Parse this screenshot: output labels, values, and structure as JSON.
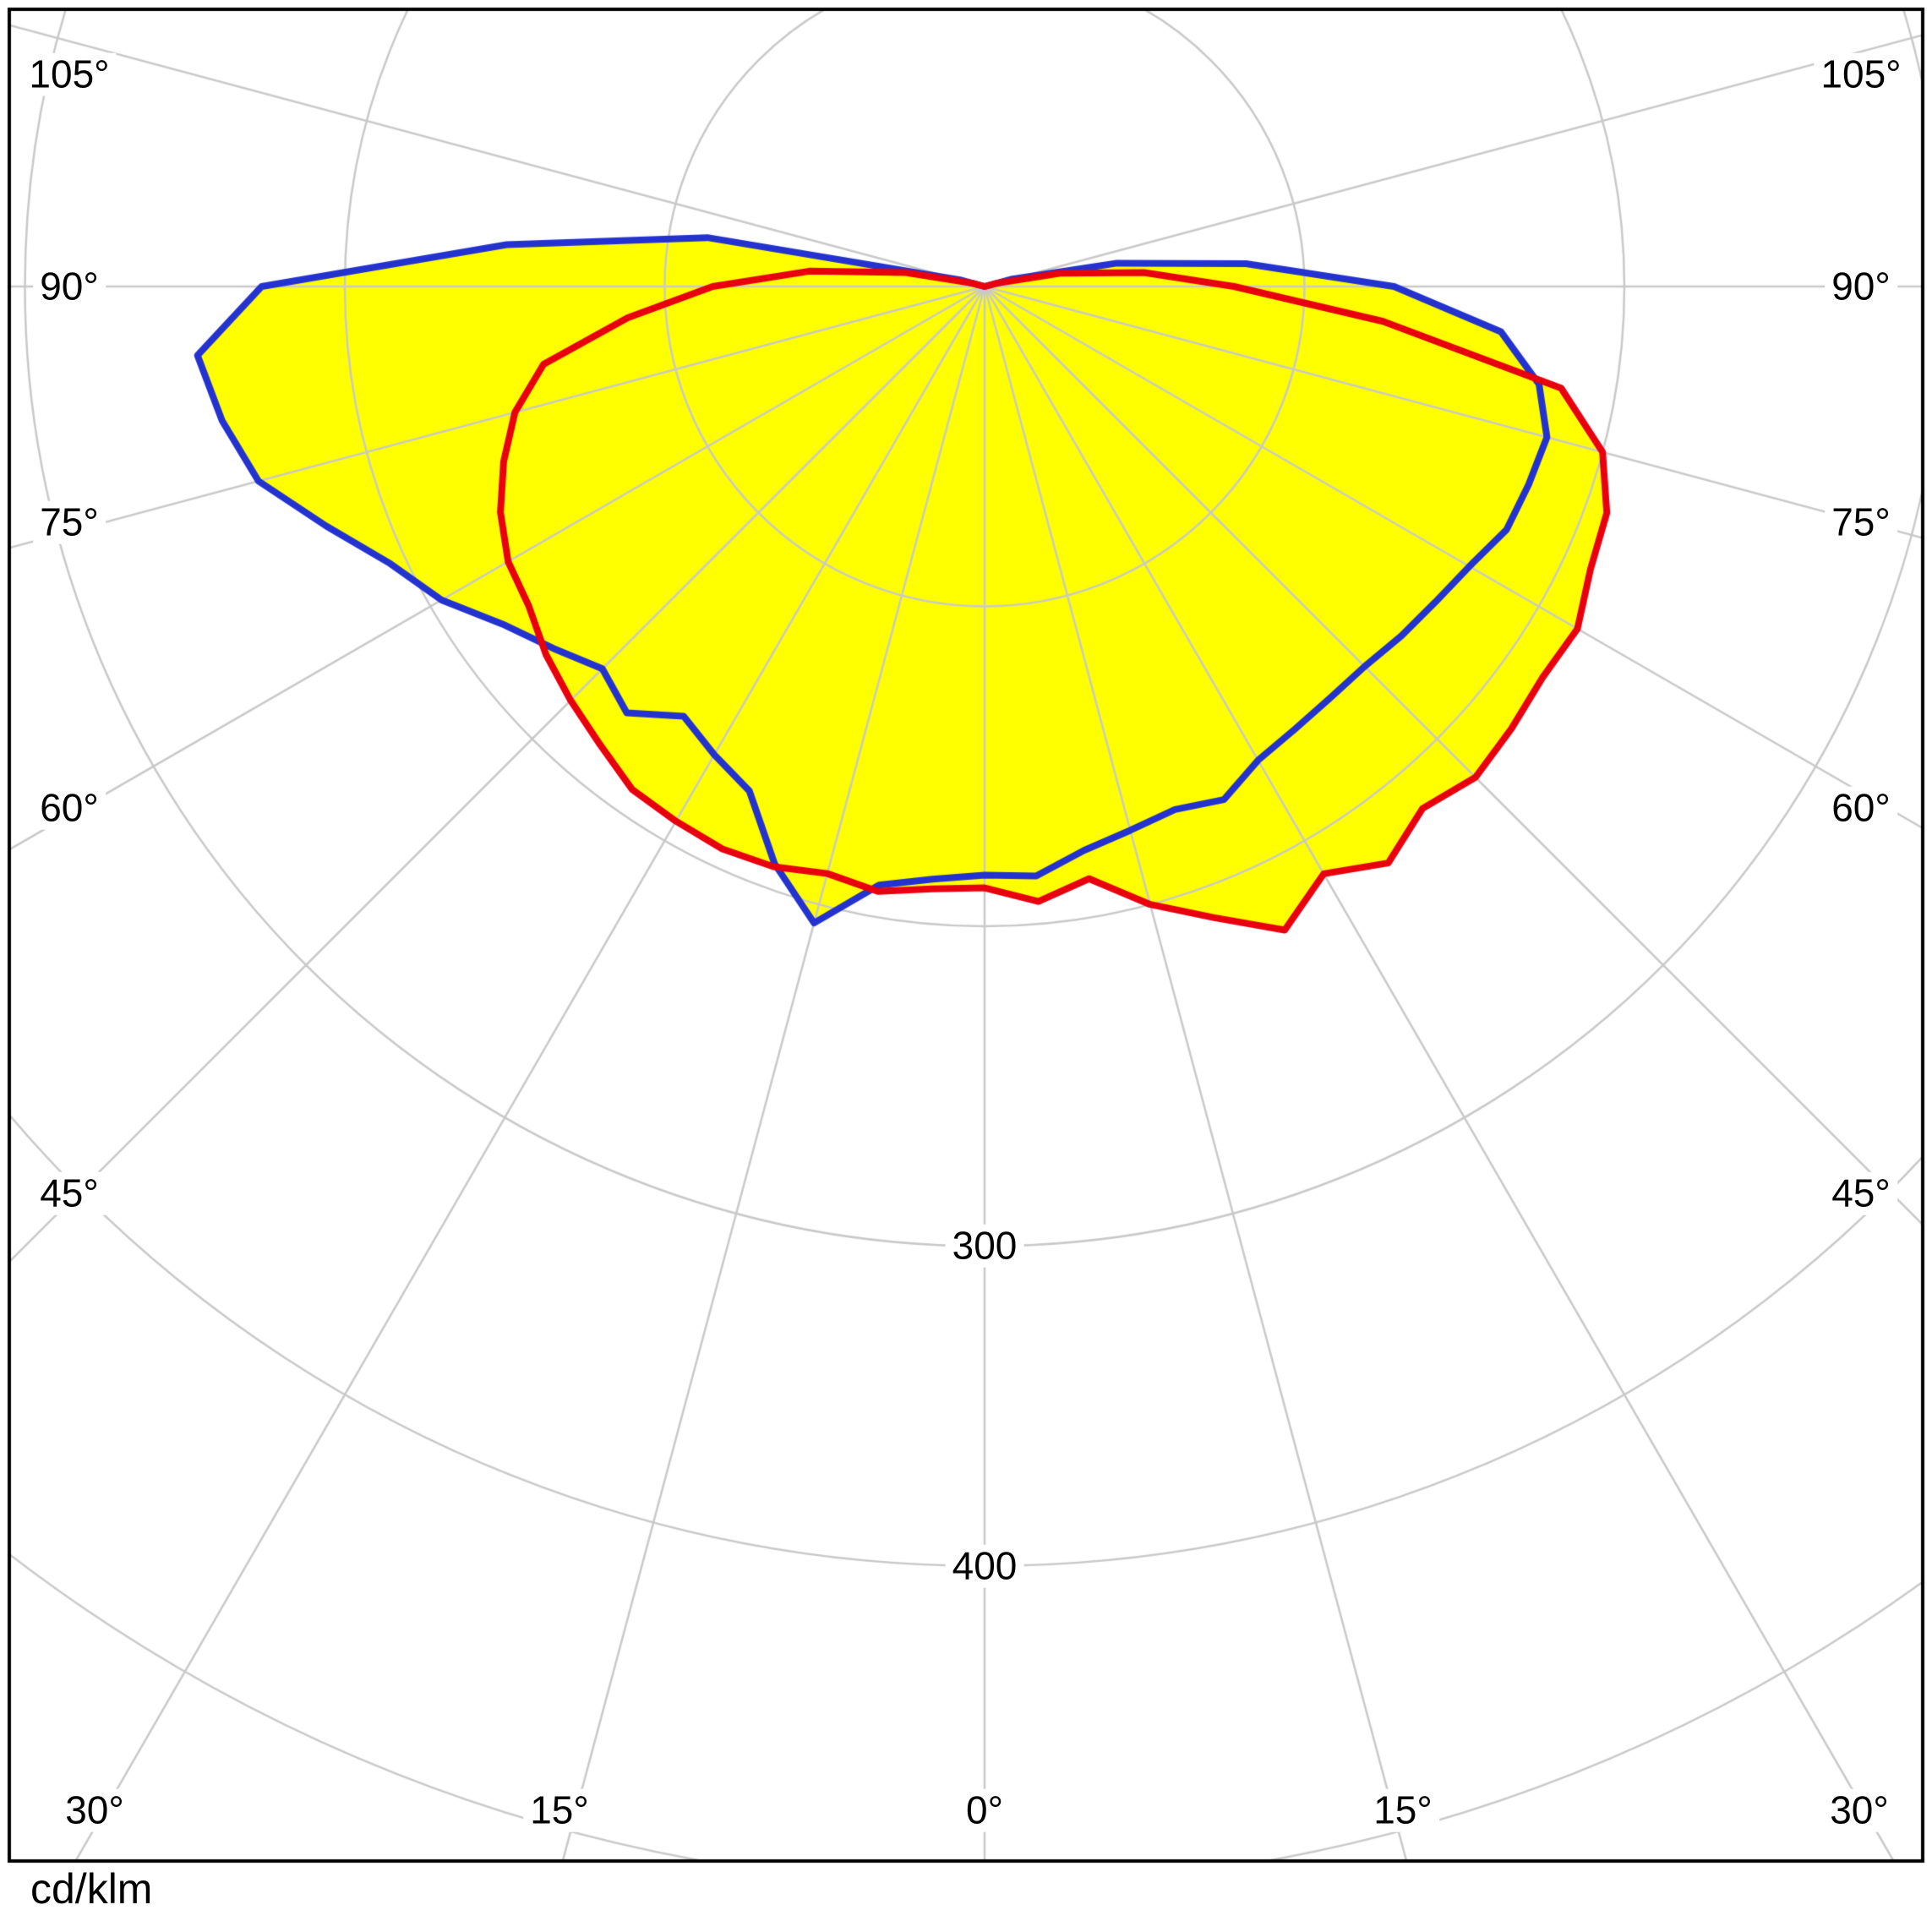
{
  "unit_label": "cd/klm",
  "axis": {
    "left_angle_labels": [
      "105°",
      "90°",
      "75°",
      "60°",
      "45°"
    ],
    "right_angle_labels": [
      "105°",
      "90°",
      "75°",
      "60°",
      "45°"
    ],
    "bottom_angle_labels": [
      "30°",
      "15°",
      "0°",
      "15°",
      "30°"
    ],
    "radial_value_labels": [
      "300",
      "400"
    ]
  },
  "colors": {
    "curve_red": "#e8000f",
    "curve_blue": "#2433d0",
    "fill_yellow": "#ffff00",
    "grid": "#c9c9c9",
    "frame": "#000000",
    "background": "#ffffff",
    "label_text": "#000000"
  },
  "chart_data": {
    "type": "polar",
    "subtype": "luminous_intensity_distribution",
    "title": "",
    "unit": "cd/klm",
    "orientation": "0 deg at bottom (nadir), gamma angles increase to both sides up to 105 deg",
    "angle_range_deg": [
      -105,
      105
    ],
    "angle_tick_step_deg": 15,
    "radial_ticks": [
      100,
      200,
      300,
      400,
      500
    ],
    "radial_tick_labels_shown": [
      "300",
      "400"
    ],
    "grid": true,
    "legend": "none",
    "fill_color": "#ffff00",
    "gamma_deg": [
      -105,
      -100,
      -95,
      -90,
      -85,
      -80,
      -75,
      -70,
      -65,
      -60,
      -55,
      -50,
      -45,
      -40,
      -35,
      -30,
      -25,
      -20,
      -15,
      -10,
      -5,
      0,
      5,
      10,
      15,
      20,
      25,
      30,
      35,
      40,
      45,
      50,
      55,
      60,
      65,
      70,
      75,
      80,
      85,
      90,
      95,
      100,
      105
    ],
    "series": [
      {
        "name": "red",
        "color": "#e8000f",
        "values": [
          4,
          25,
          55,
          85,
          112,
          140,
          152,
          160,
          167,
          172,
          174,
          179,
          183,
          187,
          192,
          193,
          194,
          193,
          190,
          192,
          189,
          188,
          193,
          188,
          200,
          210,
          222,
          212,
          220,
          213,
          217,
          215,
          213,
          214,
          209,
          207,
          200,
          183,
          125,
          78,
          50,
          24,
          4
        ]
      },
      {
        "name": "blue",
        "color": "#2433d0",
        "values": [
          8,
          88,
          150,
          226,
          247,
          242,
          235,
          219,
          205,
          196,
          184,
          176,
          169,
          174,
          164,
          169,
          174,
          192,
          206,
          190,
          186,
          184,
          185,
          179,
          176,
          174,
          177,
          171,
          169,
          168,
          168,
          170,
          172,
          175,
          180,
          181,
          182,
          176,
          162,
          128,
          82,
          42,
          9
        ]
      }
    ]
  }
}
